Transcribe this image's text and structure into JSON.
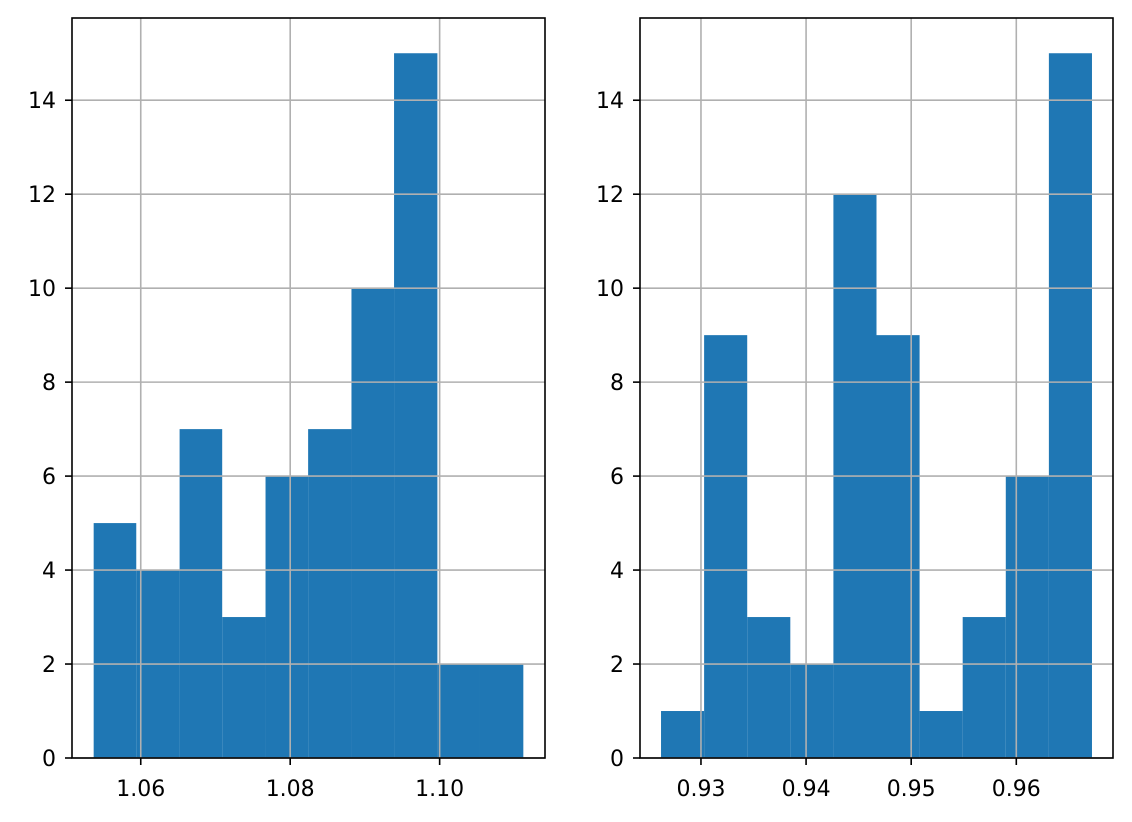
{
  "chart_data": [
    {
      "type": "bar",
      "subtype": "histogram",
      "title": "",
      "xlabel": "",
      "ylabel": "",
      "bin_edges": [
        1.0537,
        1.0594,
        1.0652,
        1.0709,
        1.0767,
        1.0824,
        1.0882,
        1.0939,
        1.0997,
        1.1054,
        1.1112
      ],
      "values": [
        5,
        4,
        7,
        3,
        6,
        7,
        10,
        15,
        2,
        2
      ],
      "xlim": [
        1.0508,
        1.1141
      ],
      "ylim": [
        0,
        15.75
      ],
      "xticks": [
        1.06,
        1.08,
        1.1
      ],
      "xtick_labels": [
        "1.06",
        "1.08",
        "1.10"
      ],
      "yticks": [
        0,
        2,
        4,
        6,
        8,
        10,
        12,
        14
      ],
      "ytick_labels": [
        "0",
        "2",
        "4",
        "6",
        "8",
        "10",
        "12",
        "14"
      ],
      "grid": true,
      "color": "#1f77b4"
    },
    {
      "type": "bar",
      "subtype": "histogram",
      "title": "",
      "xlabel": "",
      "ylabel": "",
      "bin_edges": [
        0.9262,
        0.9303,
        0.9344,
        0.9385,
        0.9426,
        0.9467,
        0.9508,
        0.9549,
        0.959,
        0.9631,
        0.9672
      ],
      "values": [
        1,
        9,
        3,
        2,
        12,
        9,
        1,
        3,
        6,
        15
      ],
      "xlim": [
        0.9242,
        0.9692
      ],
      "ylim": [
        0,
        15.75
      ],
      "xticks": [
        0.93,
        0.94,
        0.95,
        0.96
      ],
      "xtick_labels": [
        "0.93",
        "0.94",
        "0.95",
        "0.96"
      ],
      "yticks": [
        0,
        2,
        4,
        6,
        8,
        10,
        12,
        14
      ],
      "ytick_labels": [
        "0",
        "2",
        "4",
        "6",
        "8",
        "10",
        "12",
        "14"
      ],
      "grid": true,
      "color": "#1f77b4"
    }
  ]
}
